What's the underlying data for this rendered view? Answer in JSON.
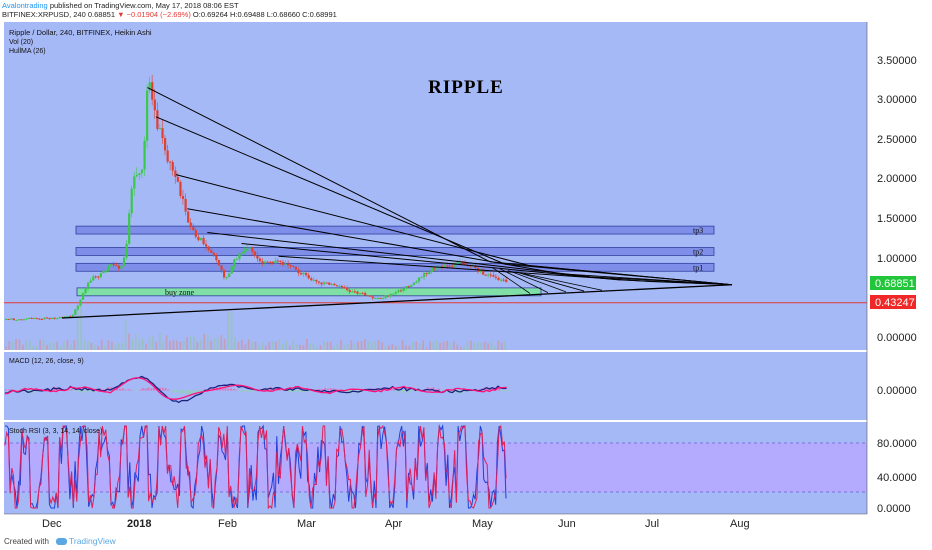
{
  "header": {
    "publisher": "Avalontrading",
    "published_text": "published on TradingView.com, May 17, 2018 08:06 EST",
    "symbol": "BITFINEX:XRPUSD, 240",
    "last": "0.68851",
    "change": "▼ −0.01904 (−2.69%)",
    "ohlc": "O:0.69264 H:0.69488 L:0.68660 C:0.68991"
  },
  "legend": {
    "line1": "Ripple / Dollar, 240, BITFINEX, Heikin Ashi",
    "line2": "Vol (20)",
    "line3": "HullMA (26)"
  },
  "chart_title": "RIPPLE",
  "zones": [
    {
      "label": "buy zone",
      "from": 0.52,
      "to": 0.62,
      "color": "#7ee0a3"
    },
    {
      "label": "tp1",
      "from": 0.83,
      "to": 0.93,
      "color": "#7d8ce8"
    },
    {
      "label": "tp2",
      "from": 1.03,
      "to": 1.13,
      "color": "#7d8ce8"
    },
    {
      "label": "tp3",
      "from": 1.3,
      "to": 1.4,
      "color": "#7d8ce8"
    }
  ],
  "price_badges": {
    "current": "0.68851",
    "support": "0.43247"
  },
  "price_axis": [
    "3.50000",
    "3.00000",
    "2.50000",
    "2.00000",
    "1.50000",
    "1.00000",
    "0.00000"
  ],
  "macd_label": "MACD (12, 26, close, 9)",
  "macd_axis": "0.00000",
  "stoch_label": "Stoch RSI (3, 3, 14, 14, close)",
  "stoch_axis": [
    "80.0000",
    "40.0000",
    "0.0000"
  ],
  "time_axis": [
    "Dec",
    "2018",
    "Feb",
    "Mar",
    "Apr",
    "May",
    "Jun",
    "Jul",
    "Aug"
  ],
  "footer": {
    "created": "Created with",
    "brand": "TradingView"
  },
  "colors": {
    "background": "#a6b9f7",
    "up": "#39c84a",
    "down": "#e0402f",
    "support_line": "#e53935",
    "current_badge": "#22c63a",
    "support_badge": "#f02828",
    "macd_line": "#1a237e",
    "signal_line": "#ff1177",
    "stoch_k": "#1e40d8",
    "stoch_d": "#e0205a",
    "stoch_band": "#b8a6ff"
  },
  "chart_data": {
    "type": "line",
    "title": "RIPPLE",
    "x": [
      "Dec",
      "2018",
      "Feb",
      "Mar",
      "Apr",
      "May",
      "Jun",
      "Jul",
      "Aug"
    ],
    "series": [
      {
        "name": "Ripple / Dollar",
        "values": [
          0.24,
          2.45,
          1.15,
          0.85,
          0.52,
          0.87,
          null,
          null,
          null
        ]
      }
    ],
    "horizontal_lines": [
      {
        "label": "0.68851",
        "value": 0.68851
      },
      {
        "label": "0.43247",
        "value": 0.43247
      }
    ],
    "ylim": [
      -0.2,
      3.9
    ],
    "grid": false,
    "legend": "top-left"
  }
}
